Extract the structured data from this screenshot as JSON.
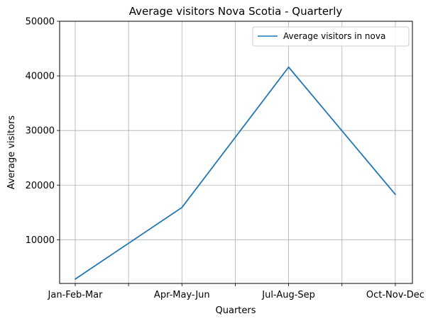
{
  "chart_data": {
    "type": "line",
    "title": "Average visitors Nova Scotia  - Quarterly",
    "xlabel": "Quarters",
    "ylabel": "Average visitors",
    "categories": [
      "Jan-Feb-Mar",
      "Apr-May-Jun",
      "Jul-Aug-Sep",
      "Oct-Nov-Dec"
    ],
    "series": [
      {
        "name": "Average visitors in nova",
        "color": "#1f77b4",
        "values": [
          2800,
          15900,
          41600,
          18300
        ]
      }
    ],
    "ylim": [
      2000,
      50000
    ],
    "yticks": [
      10000,
      20000,
      30000,
      40000,
      50000
    ],
    "ytick_labels": [
      "10000",
      "20000",
      "30000",
      "40000",
      "50000"
    ],
    "grid": true,
    "legend_position": "upper right"
  }
}
